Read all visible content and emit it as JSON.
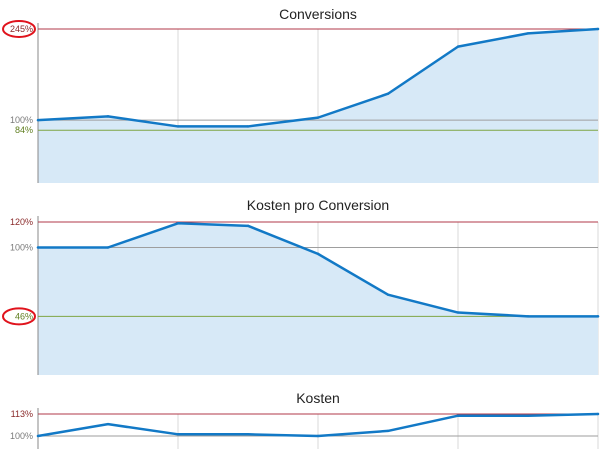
{
  "colors": {
    "line": "#1279c6",
    "fill": "#d7e9f7",
    "max_ref": "#b23a48",
    "base_ref": "#9e9e9e",
    "min_ref": "#7fa545",
    "grid": "#d9d9d9",
    "axis": "#888888",
    "highlight_circle": "#e0131c",
    "label_max": "#8a2a2a",
    "label_base": "#7a7a7a",
    "label_min": "#5e7d1e"
  },
  "chart_data": [
    {
      "type": "area",
      "title": "Conversions",
      "x": [
        1,
        2,
        3,
        4,
        5,
        6,
        7,
        8,
        9
      ],
      "series": [
        {
          "values": [
            100,
            106,
            90,
            90,
            104,
            142,
            217,
            238,
            245
          ]
        }
      ],
      "ylim": [
        0,
        245
      ],
      "reference_lines": [
        {
          "label": "245%",
          "value": 245,
          "role": "max",
          "highlighted": true
        },
        {
          "label": "100%",
          "value": 100,
          "role": "base",
          "highlighted": false
        },
        {
          "label": "84%",
          "value": 84,
          "role": "min",
          "highlighted": false
        }
      ],
      "grid": true
    },
    {
      "type": "area",
      "title": "Kosten pro Conversion",
      "x": [
        1,
        2,
        3,
        4,
        5,
        6,
        7,
        8,
        9
      ],
      "series": [
        {
          "values": [
            100,
            100,
            119,
            117,
            95,
            63,
            49,
            46,
            46
          ]
        }
      ],
      "ylim": [
        0,
        120
      ],
      "reference_lines": [
        {
          "label": "120%",
          "value": 120,
          "role": "max",
          "highlighted": false
        },
        {
          "label": "100%",
          "value": 100,
          "role": "base",
          "highlighted": false
        },
        {
          "label": "46%",
          "value": 46,
          "role": "min",
          "highlighted": true
        }
      ],
      "grid": true
    },
    {
      "type": "line",
      "title": "Kosten",
      "x": [
        1,
        2,
        3,
        4,
        5,
        6,
        7,
        8,
        9
      ],
      "series": [
        {
          "values": [
            100,
            107,
            101,
            101,
            100,
            103,
            112,
            112,
            113
          ]
        }
      ],
      "ylim": [
        100,
        113
      ],
      "reference_lines": [
        {
          "label": "113%",
          "value": 113,
          "role": "max",
          "highlighted": false
        },
        {
          "label": "100%",
          "value": 100,
          "role": "base",
          "highlighted": false
        }
      ],
      "grid": true
    }
  ]
}
